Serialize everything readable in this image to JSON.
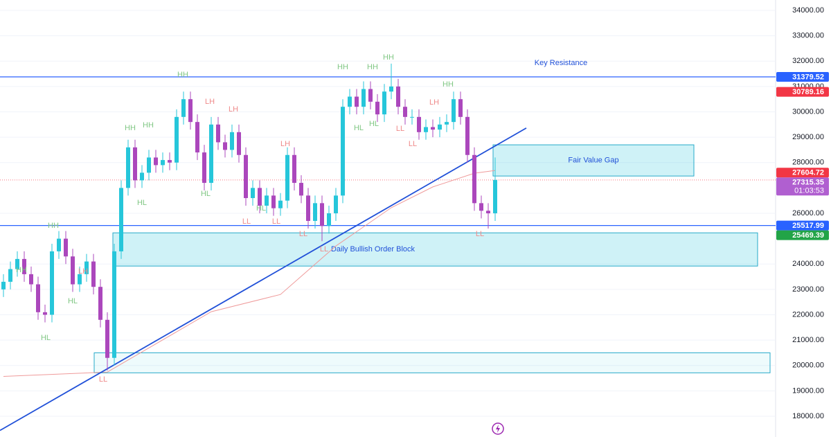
{
  "chart_data": {
    "type": "candlestick",
    "ylim": [
      17180,
      34410
    ],
    "yticks": [
      {
        "value": 18000,
        "label": "18000.00"
      },
      {
        "value": 19000,
        "label": "19000.00"
      },
      {
        "value": 20000,
        "label": "20000.00"
      },
      {
        "value": 21000,
        "label": "21000.00"
      },
      {
        "value": 22000,
        "label": "22000.00"
      },
      {
        "value": 23000,
        "label": "23000.00"
      },
      {
        "value": 24000,
        "label": "24000.00"
      },
      {
        "value": 26000,
        "label": "26000.00"
      },
      {
        "value": 28000,
        "label": "28000.00"
      },
      {
        "value": 29000,
        "label": "29000.00"
      },
      {
        "value": 30000,
        "label": "30000.00"
      },
      {
        "value": 31000,
        "label": "31000.00"
      },
      {
        "value": 32000,
        "label": "32000.00"
      },
      {
        "value": 33000,
        "label": "33000.00"
      },
      {
        "value": 34000,
        "label": "34000.00"
      }
    ],
    "colors": {
      "up": "#26c6da",
      "down": "#ab47bc",
      "grid": "#f0f3fa",
      "ma": "#ef9a9a",
      "trendline": "#2050d8",
      "zone_fill": "rgba(38,198,218,0.22)",
      "zone_stroke": "#26a9c9",
      "zone_text": "#2050d8",
      "HH": "#81c784",
      "HL": "#81c784",
      "LH": "#ef8a8a",
      "LL": "#ef8a8a"
    },
    "open": [
      23000,
      23300,
      23800,
      24200,
      23600,
      23200,
      22100,
      22000,
      24500,
      25000,
      24300,
      23200,
      23600,
      24100,
      23100,
      21800,
      20300,
      24500,
      27000,
      28600,
      27300,
      27600,
      28200,
      27900,
      28100,
      28000,
      29800,
      30500,
      29600,
      28400,
      27200,
      29500,
      28800,
      28500,
      29200,
      28300,
      26600,
      27000,
      26300,
      26700,
      26200,
      26500,
      28300,
      27200,
      26700,
      25700,
      26400,
      25500,
      26000,
      26700,
      30200,
      30600,
      30200,
      30900,
      30400,
      29900,
      30800,
      31000,
      30200,
      29800,
      29800,
      29200,
      29400,
      29300,
      29500,
      29600,
      30500,
      29800,
      28300,
      26400,
      26100,
      26000
    ],
    "high": [
      23600,
      24100,
      24500,
      24500,
      23900,
      23500,
      22400,
      24800,
      25300,
      25300,
      24600,
      23900,
      24400,
      24400,
      23400,
      22100,
      24800,
      27300,
      28900,
      28900,
      27900,
      28500,
      28500,
      28400,
      28400,
      30100,
      30800,
      30800,
      29900,
      28700,
      29800,
      29800,
      29100,
      29500,
      29500,
      28600,
      27300,
      27300,
      27000,
      27000,
      26800,
      28600,
      28600,
      27500,
      27000,
      26700,
      26700,
      26300,
      27000,
      30500,
      30900,
      30900,
      31200,
      31200,
      30700,
      31100,
      31900,
      31300,
      30500,
      30100,
      30100,
      29700,
      29700,
      29800,
      29900,
      30800,
      30800,
      30100,
      28600,
      26700,
      26400,
      28200
    ],
    "low": [
      22700,
      23000,
      23500,
      23300,
      22900,
      21800,
      21700,
      21700,
      24200,
      24000,
      22900,
      22900,
      23300,
      22800,
      21500,
      19800,
      20000,
      24200,
      26700,
      27000,
      27000,
      27300,
      27600,
      27600,
      27700,
      27700,
      29500,
      29300,
      28100,
      26900,
      26900,
      28500,
      28200,
      28200,
      28000,
      26300,
      26300,
      26000,
      26000,
      25900,
      25900,
      26200,
      26900,
      26400,
      25400,
      25400,
      24900,
      25200,
      25700,
      26400,
      29900,
      29900,
      29900,
      30100,
      29600,
      29600,
      30500,
      29900,
      29500,
      29500,
      28900,
      28900,
      29000,
      29000,
      29200,
      29300,
      29500,
      28000,
      26100,
      25800,
      25400,
      25700
    ],
    "close": [
      23300,
      23800,
      24200,
      23600,
      23200,
      22100,
      22000,
      24500,
      25000,
      24300,
      23200,
      23600,
      24100,
      23100,
      21800,
      20300,
      24500,
      27000,
      28600,
      27300,
      27600,
      28200,
      27900,
      28100,
      28000,
      29800,
      30500,
      29600,
      28400,
      27200,
      29500,
      28800,
      28500,
      29200,
      28300,
      26600,
      27000,
      26300,
      26700,
      26200,
      26500,
      28300,
      27200,
      26700,
      25700,
      26400,
      25500,
      26000,
      26700,
      30200,
      30600,
      30200,
      30900,
      30400,
      29900,
      30800,
      31000,
      30200,
      29800,
      29800,
      29200,
      29400,
      29300,
      29500,
      29600,
      30500,
      29800,
      28300,
      26400,
      26100,
      26000,
      27316
    ],
    "ma": {
      "x": [
        0,
        15,
        30,
        40,
        48,
        56,
        62,
        68,
        71
      ],
      "values": [
        19570,
        19740,
        22120,
        22800,
        24710,
        26220,
        27040,
        27580,
        27690
      ]
    },
    "trendline": {
      "x": [
        -0.5,
        75.5
      ],
      "values": [
        17440,
        29360
      ]
    },
    "zones": [
      {
        "label": "Fair Value Gap",
        "x0": 70.7,
        "x1": 99.7,
        "top": 28700,
        "bottom": 27470
      },
      {
        "label": "Daily Bullish Order Block",
        "x0": 15.8,
        "x1": 108.9,
        "top": 25230,
        "bottom": 23920
      },
      {
        "x0": 13.1,
        "x1": 110.7,
        "top": 20500,
        "bottom": 19710
      }
    ],
    "annotations": [
      {
        "text": "Key Resistance",
        "x": 80.5,
        "price": 31920
      }
    ],
    "structure": [
      {
        "label": "HH",
        "x": 2.6,
        "price": 23760
      },
      {
        "label": "HL",
        "x": 6.1,
        "price": 21080
      },
      {
        "label": "HH",
        "x": 7.2,
        "price": 25500
      },
      {
        "label": "HL",
        "x": 10,
        "price": 22530
      },
      {
        "label": "LH",
        "x": 11.5,
        "price": 23700
      },
      {
        "label": "LL",
        "x": 14.4,
        "price": 19440
      },
      {
        "label": "HH",
        "x": 18.3,
        "price": 29360
      },
      {
        "label": "HH",
        "x": 20.9,
        "price": 29470
      },
      {
        "label": "HL",
        "x": 20,
        "price": 26410
      },
      {
        "label": "HH",
        "x": 25.9,
        "price": 31460
      },
      {
        "label": "LH",
        "x": 29.8,
        "price": 30390
      },
      {
        "label": "HL",
        "x": 29.2,
        "price": 26760
      },
      {
        "label": "LH",
        "x": 33.2,
        "price": 30090
      },
      {
        "label": "LL",
        "x": 35.1,
        "price": 25670
      },
      {
        "label": "HL",
        "x": 37.2,
        "price": 26190
      },
      {
        "label": "LL",
        "x": 39.4,
        "price": 25670
      },
      {
        "label": "LH",
        "x": 40.7,
        "price": 28730
      },
      {
        "label": "LL",
        "x": 43.3,
        "price": 25180
      },
      {
        "label": "LL",
        "x": 46.3,
        "price": 24580
      },
      {
        "label": "HH",
        "x": 49,
        "price": 31760
      },
      {
        "label": "HH",
        "x": 53.3,
        "price": 31760
      },
      {
        "label": "HH",
        "x": 55.6,
        "price": 32140
      },
      {
        "label": "HL",
        "x": 51.3,
        "price": 29360
      },
      {
        "label": "HL",
        "x": 53.5,
        "price": 29520
      },
      {
        "label": "LL",
        "x": 57.3,
        "price": 29330
      },
      {
        "label": "LL",
        "x": 59.1,
        "price": 28730
      },
      {
        "label": "LH",
        "x": 62.2,
        "price": 30370
      },
      {
        "label": "HH",
        "x": 64.2,
        "price": 31080
      },
      {
        "label": "LL",
        "x": 68.8,
        "price": 25180
      }
    ],
    "price_tags": [
      {
        "value": 31379.52,
        "label": "31379.52",
        "color": "#2962ff",
        "line": "solid"
      },
      {
        "value": 30789.16,
        "label": "30789.16",
        "color": "#f23645"
      },
      {
        "value": 27604.72,
        "label": "27604.72",
        "color": "#f23645"
      },
      {
        "value": 27315.35,
        "label": "27315.35",
        "color": "#b05fd0",
        "countdown": "01:03:53",
        "line": "dotted"
      },
      {
        "value": 25517.99,
        "label": "25517.99",
        "color": "#2962ff",
        "line": "solid"
      },
      {
        "value": 25469.39,
        "label": "25469.39",
        "color": "#22a447"
      }
    ]
  }
}
